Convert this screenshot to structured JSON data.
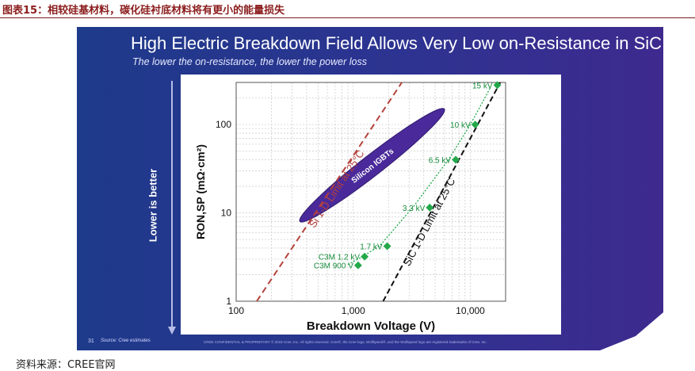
{
  "caption": "图表15：相较硅基材料，碳化硅衬底材料将有更小的能量损失",
  "source": "资料来源：CREE官网",
  "slide": {
    "title": "High Electric Breakdown Field Allows Very Low on-Resistance in SiC",
    "subtitle": "The lower the on-resistance, the lower the power loss",
    "side_label": "Lower is better",
    "page_number": "31",
    "source_note": "Source: Cree estimates",
    "confidential": "CREE CONFIDENTIAL & PROPRIETARY © 2019 Cree, Inc. All rights reserved. Cree®, the Cree logo, Wolfspeed®, and the Wolfspeed logo are registered trademarks of Cree, Inc.",
    "colors": {
      "background_start": "#1e3a8a",
      "background_end": "#3e2a8f",
      "si_limit": "#b5413b",
      "sic_limit": "#111111",
      "sic_devices": "#23a84a",
      "igbt_region": "#4a2a9a"
    }
  },
  "chart_data": {
    "type": "line",
    "xscale": "log",
    "yscale": "log",
    "xlim": [
      100,
      20000
    ],
    "ylim": [
      1,
      300
    ],
    "xlabel": "Breakdown Voltage (V)",
    "ylabel": "RON,SP (mΩ·cm²)",
    "xticks": [
      "100",
      "1,000",
      "10,000"
    ],
    "yticks": [
      "1",
      "10",
      "100"
    ],
    "grid": true,
    "series": [
      {
        "name": "Si 1-D Limit at 25°C",
        "style": "dashed",
        "x": [
          150,
          2600
        ],
        "y": [
          1,
          300
        ]
      },
      {
        "name": "SiC 1-D Limit at 25°C",
        "style": "dashed",
        "x": [
          1800,
          18000
        ],
        "y": [
          1,
          300
        ]
      },
      {
        "name": "",
        "style": "dotted",
        "x": [
          900,
          1200,
          1700,
          3300,
          6500,
          10000,
          15000
        ],
        "y": [
          2.6,
          3.2,
          4.3,
          12,
          40,
          100,
          270
        ]
      }
    ],
    "points": [
      {
        "label": "C3M 900 V",
        "x": 1100,
        "y": 2.55
      },
      {
        "label": "C3M 1.2 kV",
        "x": 1250,
        "y": 3.2
      },
      {
        "label": "1.7 kV",
        "x": 1950,
        "y": 4.2
      },
      {
        "label": "3.3 kV",
        "x": 4500,
        "y": 11.5
      },
      {
        "label": "6.5 kV",
        "x": 7500,
        "y": 40
      },
      {
        "label": "10 kV",
        "x": 11000,
        "y": 100
      },
      {
        "label": "15 kV",
        "x": 17000,
        "y": 280
      }
    ],
    "region": {
      "label": "Silicon IGBTs",
      "x": [
        350,
        6000
      ],
      "y": [
        8,
        150
      ]
    }
  }
}
